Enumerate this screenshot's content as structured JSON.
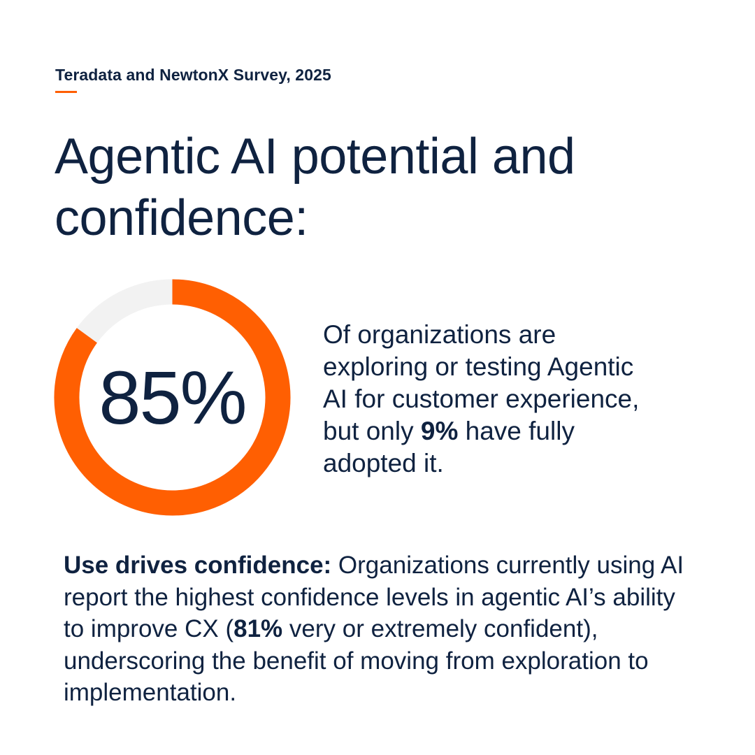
{
  "header": {
    "source": "Teradata and NewtonX Survey, 2025"
  },
  "title": {
    "line1": "Agentic AI potential and",
    "line2": "confidence:"
  },
  "chart_data": {
    "type": "pie",
    "variant": "donut",
    "value_percent": 85,
    "center_label": "85%",
    "slices": [
      {
        "name": "exploring or testing",
        "value": 85,
        "color": "#ff5f02"
      },
      {
        "name": "remainder",
        "value": 15,
        "color": "#f2f2f2"
      }
    ]
  },
  "stat": {
    "text_before": "Of organizations are exploring or testing Agentic AI for customer experience, but only ",
    "highlight": "9%",
    "text_after": " have fully adopted it."
  },
  "footer": {
    "lead": "Use drives confidence:",
    "text_before": " Organizations currently using AI report the highest confidence levels in agentic AI’s ability to improve CX (",
    "highlight": "81%",
    "text_after": " very or extremely confident), underscoring the benefit of moving from exploration to implementation."
  },
  "colors": {
    "accent": "#ff5f02",
    "track": "#f2f2f2",
    "text": "#0f2240"
  }
}
